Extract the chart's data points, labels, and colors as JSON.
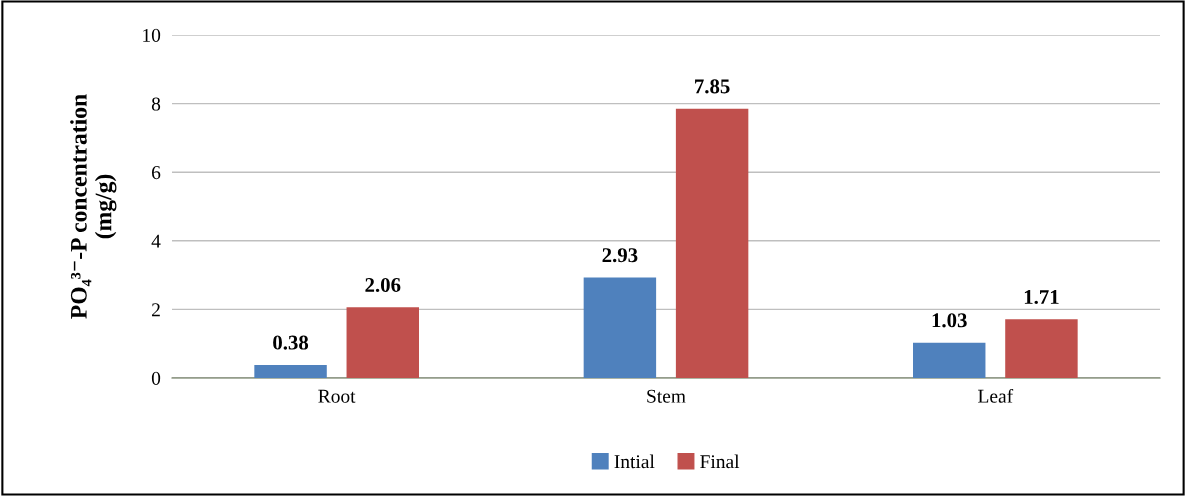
{
  "chart_data": {
    "type": "bar",
    "ylabel": "PO₄³⁻-P concentration\n(mg/g)",
    "categories": [
      "Root",
      "Stem",
      "Leaf"
    ],
    "series": [
      {
        "name": "Intial",
        "color": "#4f81bd",
        "values": [
          0.38,
          2.93,
          1.03
        ]
      },
      {
        "name": "Final",
        "color": "#c0504d",
        "values": [
          2.06,
          7.85,
          1.71
        ]
      }
    ],
    "ylim": [
      0,
      10
    ],
    "yticks": [
      0,
      2,
      4,
      6,
      8,
      10
    ],
    "grid": "y",
    "legend": "bottom",
    "data_labels": true
  }
}
